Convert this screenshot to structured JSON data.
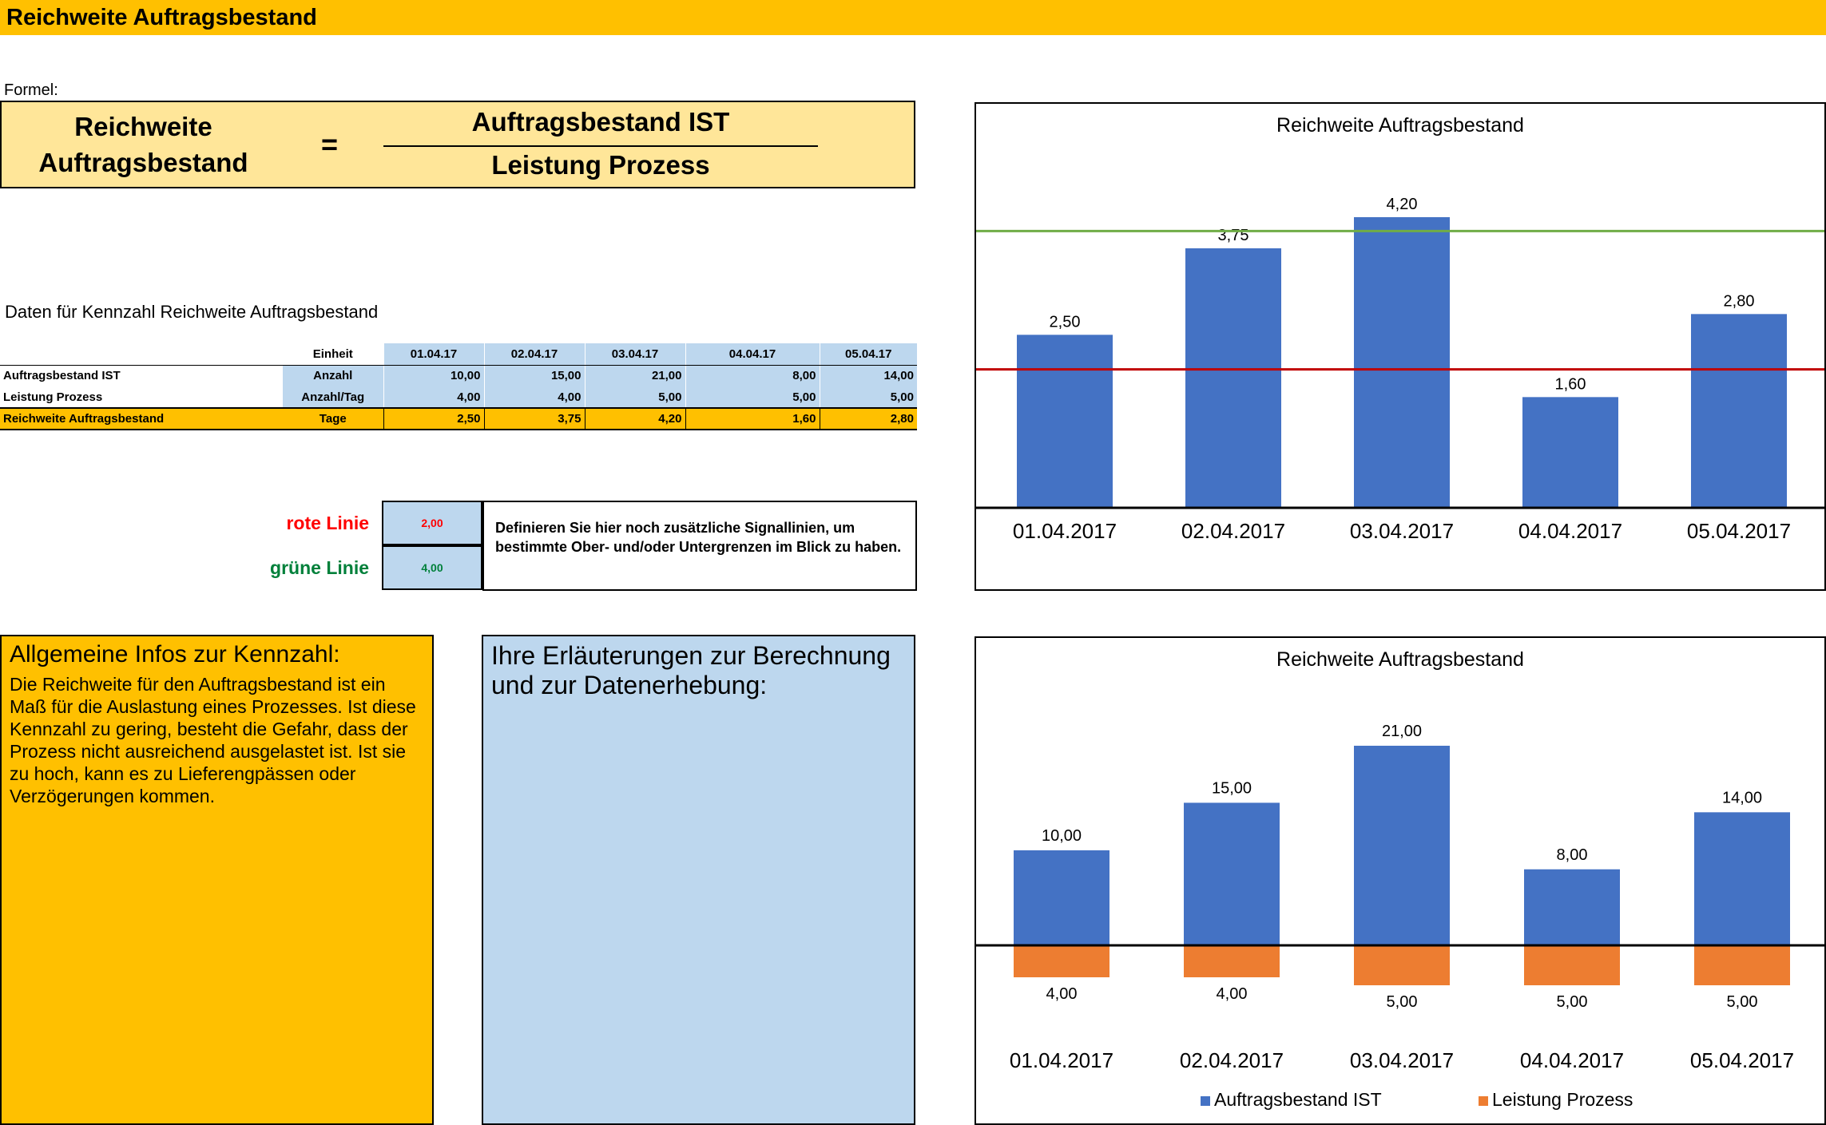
{
  "page_title": "Reichweite Auftragsbestand",
  "formel_label": "Formel:",
  "formula": {
    "left_line1": "Reichweite",
    "left_line2": "Auftragsbestand",
    "equals": "=",
    "numerator": "Auftragsbestand IST",
    "denominator": "Leistung Prozess"
  },
  "data_section_title": "Daten für Kennzahl Reichweite Auftragsbestand",
  "table": {
    "unit_header": "Einheit",
    "dates": [
      "01.04.17",
      "02.04.17",
      "03.04.17",
      "04.04.17",
      "05.04.17"
    ],
    "rows": [
      {
        "label": "Auftragsbestand IST",
        "unit": "Anzahl",
        "values": [
          "10,00",
          "15,00",
          "21,00",
          "8,00",
          "14,00"
        ]
      },
      {
        "label": "Leistung Prozess",
        "unit": "Anzahl/Tag",
        "values": [
          "4,00",
          "4,00",
          "5,00",
          "5,00",
          "5,00"
        ]
      },
      {
        "label": "Reichweite Auftragsbestand",
        "unit": "Tage",
        "values": [
          "2,50",
          "3,75",
          "4,20",
          "1,60",
          "2,80"
        ]
      }
    ]
  },
  "signal": {
    "red_label": "rote Linie",
    "red_value": "2,00",
    "green_label": "grüne Linie",
    "green_value": "4,00",
    "description": "Definieren Sie hier noch zusätzliche Signallinien, um bestimmte Ober- und/oder Untergrenzen im Blick zu haben."
  },
  "info": {
    "title": "Allgemeine Infos zur Kennzahl:",
    "text": "Die Reichweite für den Auftragsbestand ist ein Maß für die Auslastung eines Prozesses. Ist diese Kennzahl zu gering, besteht die Gefahr, dass der Prozess nicht ausreichend ausgelastet ist. Ist sie zu hoch, kann es zu Lieferengpässen oder Verzögerungen kommen."
  },
  "explanation": {
    "title": "Ihre Erläuterungen zur Berechnung und zur Datenerhebung:"
  },
  "colors": {
    "header_yellow": "#ffc000",
    "formula_bg": "#ffe699",
    "light_blue": "#bdd7ee",
    "bar_blue": "#4472c4",
    "bar_orange": "#ed7d31",
    "red_line": "#c00000",
    "green_line": "#70ad47",
    "red_text": "#ff0000",
    "green_text": "#00803a"
  },
  "chart_data": [
    {
      "type": "bar",
      "title": "Reichweite Auftragsbestand",
      "categories": [
        "01.04.2017",
        "02.04.2017",
        "03.04.2017",
        "04.04.2017",
        "05.04.2017"
      ],
      "values": [
        2.5,
        3.75,
        4.2,
        1.6,
        2.8
      ],
      "labels": [
        "2,50",
        "3,75",
        "4,20",
        "1,60",
        "2,80"
      ],
      "ylim": [
        0,
        4.8
      ],
      "reference_lines": [
        {
          "name": "rote Linie",
          "value": 2.0,
          "color": "#c00000"
        },
        {
          "name": "grüne Linie",
          "value": 4.0,
          "color": "#70ad47"
        }
      ],
      "grid": false
    },
    {
      "type": "bar",
      "title": "Reichweite Auftragsbestand",
      "categories": [
        "01.04.2017",
        "02.04.2017",
        "03.04.2017",
        "04.04.2017",
        "05.04.2017"
      ],
      "series": [
        {
          "name": "Auftragsbestand IST",
          "values": [
            10,
            15,
            21,
            8,
            14
          ],
          "labels": [
            "10,00",
            "15,00",
            "21,00",
            "8,00",
            "14,00"
          ],
          "direction": "up"
        },
        {
          "name": "Leistung Prozess",
          "values": [
            4,
            4,
            5,
            5,
            5
          ],
          "labels": [
            "4,00",
            "4,00",
            "5,00",
            "5,00",
            "5,00"
          ],
          "direction": "down"
        }
      ],
      "legend": "bottom",
      "grid": false
    }
  ]
}
